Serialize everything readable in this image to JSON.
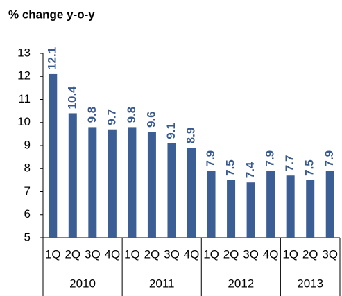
{
  "chart_data": {
    "type": "bar",
    "title": "% change y-o-y",
    "categories": [
      "1Q",
      "2Q",
      "3Q",
      "4Q",
      "1Q",
      "2Q",
      "3Q",
      "4Q",
      "1Q",
      "2Q",
      "3Q",
      "4Q",
      "1Q",
      "2Q",
      "3Q"
    ],
    "groups": [
      {
        "label": "2010",
        "span": 4
      },
      {
        "label": "2011",
        "span": 4
      },
      {
        "label": "2012",
        "span": 4
      },
      {
        "label": "2013",
        "span": 3
      }
    ],
    "values": [
      12.1,
      10.4,
      9.8,
      9.7,
      9.8,
      9.6,
      9.1,
      8.9,
      7.9,
      7.5,
      7.4,
      7.9,
      7.7,
      7.5,
      7.9
    ],
    "color": "#3b5e94",
    "ylim": [
      5,
      13
    ],
    "yticks": [
      5,
      6,
      7,
      8,
      9,
      10,
      11,
      12,
      13
    ],
    "grid": false
  }
}
